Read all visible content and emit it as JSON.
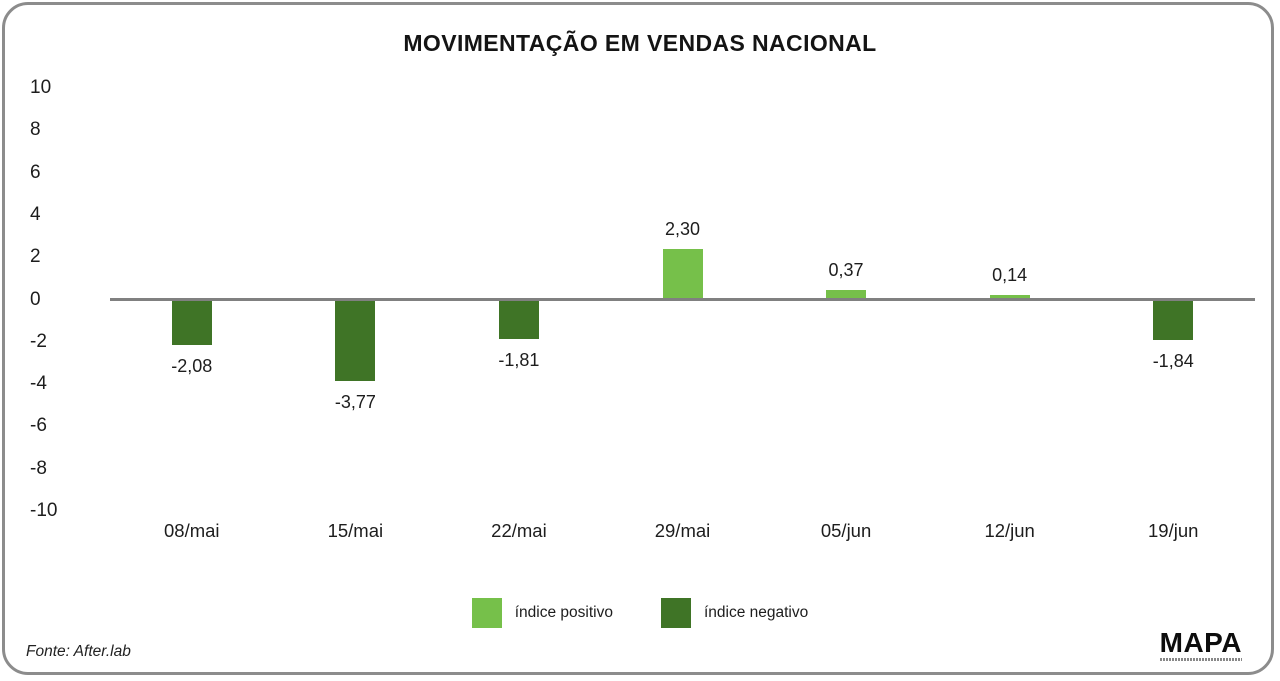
{
  "title": "MOVIMENTAÇÃO EM VENDAS NACIONAL",
  "chart_data": {
    "type": "bar",
    "title": "MOVIMENTAÇÃO EM VENDAS NACIONAL",
    "categories": [
      "08/mai",
      "15/mai",
      "22/mai",
      "29/mai",
      "05/jun",
      "12/jun",
      "19/jun"
    ],
    "values": [
      -2.08,
      -3.77,
      -1.81,
      2.3,
      0.37,
      0.14,
      -1.84
    ],
    "value_labels": [
      "-2,08",
      "-3,77",
      "-1,81",
      "2,30",
      "0,37",
      "0,14",
      "-1,84"
    ],
    "xlabel": "",
    "ylabel": "",
    "ylim": [
      -10,
      10
    ],
    "yticks": [
      10,
      8,
      6,
      4,
      2,
      0,
      -2,
      -4,
      -6,
      -8,
      -10
    ],
    "grid": false,
    "positive_color": "#76c04a",
    "negative_color": "#3f7426",
    "axis_line_color": "#808080",
    "legend_position": "bottom",
    "legend": [
      {
        "label": "índice positivo",
        "color": "#76c04a"
      },
      {
        "label": "índice negativo",
        "color": "#3f7426"
      }
    ]
  },
  "footer": {
    "source": "Fonte: After.lab",
    "logo": "MAPA"
  }
}
